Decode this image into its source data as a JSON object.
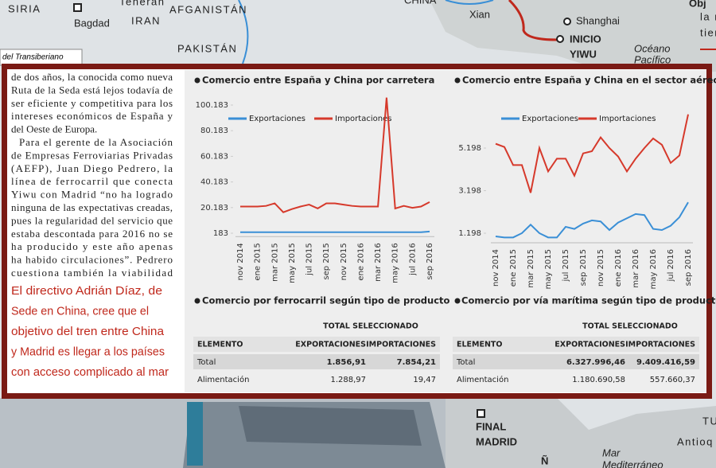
{
  "map": {
    "labels": [
      "SIRIA",
      "Bagdad",
      "Teherán",
      "IRAN",
      "AFGANISTÁN",
      "PAKISTÁN",
      "CHINA",
      "Xian",
      "Shanghai",
      "INICIO",
      "YIWU",
      "Océano",
      "Pacífico",
      "Obj",
      "la r",
      "tien",
      "FINAL",
      "MADRID",
      "Mar",
      "Mediterráneo",
      "TU",
      "Antioq",
      "Ñ"
    ],
    "caption": "del Transiberiano"
  },
  "article": {
    "paragraphs": [
      [
        "de dos años, la conocida como nueva",
        "Ruta de la Seda está lejos todavía de",
        "ser eficiente y competitiva para los",
        "intereses económicos de España y",
        "del Oeste de Europa."
      ],
      [
        "Para el gerente de la Asociación",
        "de Empresas Ferroviarias Privadas",
        "(AEFP), Juan Diego Pedrero, la",
        "línea de ferrocarril que conecta",
        "Yiwu con Madrid “no ha logrado",
        "ninguna de las expectativas creadas,",
        "pues la regularidad del servicio que",
        "estaba descontada para 2016 no se",
        "ha producido y este año apenas",
        "ha habido circulaciones”. Pedrero",
        "cuestiona también la viabilidad"
      ]
    ],
    "quote": [
      "El directivo Adrián Díaz, de",
      "Sede en China, cree que el",
      "objetivo del tren entre China",
      "y Madrid es llegar a los países",
      "con acceso complicado al mar"
    ]
  },
  "charts": [
    {
      "type": "line",
      "title": "Comercio entre España y China por carretera",
      "categories": [
        "nov 2014",
        null,
        "ene 2015",
        null,
        "mar 2015",
        null,
        "may 2015",
        null,
        "jul 2015",
        null,
        "sep 2015",
        null,
        "nov 2015",
        null,
        "ene 2016",
        null,
        "mar 2016",
        null,
        "may 2016",
        null,
        "jul 2016",
        null,
        "sep 2016"
      ],
      "series": [
        {
          "name": "Exportaciones",
          "color": "#3a8fd6",
          "values": [
            1000,
            1000,
            1000,
            1000,
            1000,
            1000,
            1000,
            1000,
            1000,
            1000,
            1000,
            1000,
            1000,
            1000,
            1000,
            1000,
            1000,
            1000,
            1000,
            1000,
            1000,
            1000,
            1500
          ]
        },
        {
          "name": "Importaciones",
          "color": "#d6392b",
          "values": [
            21000,
            21000,
            21000,
            21500,
            23500,
            16500,
            19000,
            21000,
            22500,
            19500,
            23500,
            23500,
            22500,
            21500,
            21000,
            21000,
            21000,
            106000,
            19500,
            21500,
            20000,
            21000,
            24500
          ]
        }
      ],
      "ylim": [
        0,
        110000
      ],
      "yticks": [
        183,
        {
          "value": 20183,
          "label": "20.183"
        },
        {
          "value": 40183,
          "label": "40.183"
        },
        {
          "value": 60183,
          "label": "60.183"
        },
        {
          "value": 80183,
          "label": "80.183"
        },
        {
          "value": 100183,
          "label": "100.183"
        }
      ]
    },
    {
      "type": "line",
      "title": "Comercio entre España y China en el sector aéreo",
      "categories": [
        "nov 2014",
        null,
        "ene 2015",
        null,
        "mar 2015",
        null,
        "may 2015",
        null,
        "jul 2015",
        null,
        "sep 2015",
        null,
        "nov 2015",
        null,
        "ene 2016",
        null,
        "mar 2016",
        null,
        "may 2016",
        null,
        "jul 2016",
        null,
        "sep 2016"
      ],
      "series": [
        {
          "name": "Exportaciones",
          "color": "#3a8fd6",
          "values": [
            1050,
            1000,
            1000,
            1200,
            1600,
            1200,
            1000,
            1000,
            1500,
            1400,
            1650,
            1800,
            1750,
            1350,
            1700,
            1900,
            2100,
            2050,
            1400,
            1350,
            1550,
            1950,
            2650
          ]
        },
        {
          "name": "Importaciones",
          "color": "#d6392b",
          "values": [
            5400,
            5250,
            4400,
            4400,
            3100,
            5200,
            4100,
            4700,
            4700,
            3900,
            4950,
            5050,
            5700,
            5200,
            4800,
            4100,
            4700,
            5200,
            5650,
            5350,
            4500,
            4850,
            6780
          ]
        }
      ],
      "ylim": [
        900,
        7700
      ],
      "yticks": [
        {
          "value": 1198,
          "label": "1.198"
        },
        {
          "value": 3198,
          "label": "3.198"
        },
        {
          "value": 5198,
          "label": "5.198"
        }
      ]
    }
  ],
  "tables": [
    {
      "title": "Comercio por ferrocarril según tipo de producto",
      "header": "TOTAL SELECCIONADO",
      "columns": [
        "ELEMENTO",
        "EXPORTACIONES",
        "IMPORTACIONES"
      ],
      "rows": [
        [
          "Total",
          "1.856,91",
          "7.854,21"
        ],
        [
          "Alimentación",
          "1.288,97",
          "19,47"
        ]
      ]
    },
    {
      "title": "Comercio por vía marítima según tipo de producto",
      "header": "TOTAL SELECCIONADO",
      "columns": [
        "ELEMENTO",
        "EXPORTACIONES",
        "IMPORTACIONES"
      ],
      "rows": [
        [
          "Total",
          "6.327.996,46",
          "9.409.416,59"
        ],
        [
          "Alimentación",
          "1.180.690,58",
          "557.660,37"
        ]
      ]
    }
  ]
}
